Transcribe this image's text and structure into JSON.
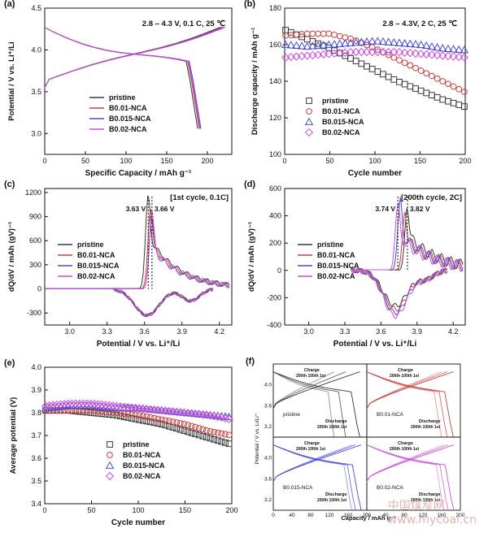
{
  "watermark": {
    "cn": "中国煤炭网",
    "url": "www.mycoal.cn"
  },
  "legend_names": [
    "pristine",
    "B0.01-NCA",
    "B0.015-NCA",
    "B0.02-NCA"
  ],
  "colors": {
    "pristine": "#3a3a3a",
    "B0.01-NCA": "#c94040",
    "B0.015-NCA": "#4a4ad0",
    "B0.02-NCA": "#c84fd8"
  },
  "chart_data": [
    {
      "panel": "(a)",
      "type": "line",
      "annotation": "2.8 – 4.3 V, 0.1 C, 25 ℃",
      "xlabel": "Specific Capacity / mAh g⁻¹",
      "ylabel": "Potential / V vs. Li⁺/Li",
      "xlim": [
        0,
        230
      ],
      "ylim": [
        2.75,
        4.5
      ],
      "xticks": [
        "0",
        "50",
        "100",
        "150",
        "200"
      ],
      "yticks": [
        "3.0",
        "3.5",
        "4.0",
        "4.5"
      ],
      "legend": "lower-center",
      "series": [
        {
          "name": "pristine",
          "charge_capacity": 216,
          "discharge_capacity": 188
        },
        {
          "name": "B0.01-NCA",
          "charge_capacity": 218,
          "discharge_capacity": 190
        },
        {
          "name": "B0.015-NCA",
          "charge_capacity": 220,
          "discharge_capacity": 192
        },
        {
          "name": "B0.02-NCA",
          "charge_capacity": 222,
          "discharge_capacity": 191
        }
      ]
    },
    {
      "panel": "(b)",
      "type": "scatter",
      "annotation": "2.8 – 4.3V, 2 C, 25 ℃",
      "xlabel": "Cycle number",
      "ylabel": "Discharge capacity / mAh g⁻¹",
      "xlim": [
        0,
        200
      ],
      "ylim": [
        100,
        180
      ],
      "xticks": [
        "0",
        "50",
        "100",
        "150",
        "200"
      ],
      "yticks": [
        "100",
        "120",
        "140",
        "160",
        "180"
      ],
      "legend": "lower-left",
      "series": [
        {
          "name": "pristine",
          "x": [
            1,
            25,
            50,
            75,
            100,
            125,
            150,
            175,
            200
          ],
          "values": [
            168,
            163,
            158,
            152,
            146,
            140,
            135,
            130,
            126
          ]
        },
        {
          "name": "B0.01-NCA",
          "x": [
            1,
            25,
            50,
            75,
            100,
            125,
            150,
            175,
            200
          ],
          "values": [
            165,
            166,
            166,
            163,
            158,
            152,
            146,
            140,
            134
          ]
        },
        {
          "name": "B0.015-NCA",
          "x": [
            1,
            25,
            50,
            75,
            100,
            125,
            150,
            175,
            200
          ],
          "values": [
            160,
            159,
            160,
            161,
            162,
            161,
            160,
            158,
            157
          ]
        },
        {
          "name": "B0.02-NCA",
          "x": [
            1,
            25,
            50,
            75,
            100,
            125,
            150,
            175,
            200
          ],
          "values": [
            153,
            154,
            155,
            156,
            156,
            156,
            155,
            154,
            153
          ]
        }
      ]
    },
    {
      "panel": "(c)",
      "type": "line",
      "annotation": "[1st cycle, 0.1C]",
      "peak_labels": [
        "3.63 V",
        "3.66 V"
      ],
      "xlabel": "Potential / V vs. Li⁺/Li",
      "ylabel": "dQ/dV / mAh (gV)⁻¹",
      "xlim": [
        2.8,
        4.3
      ],
      "ylim": [
        -450,
        1250
      ],
      "xticks": [
        "3.0",
        "3.3",
        "3.6",
        "3.9",
        "4.2"
      ],
      "yticks": [
        "-300",
        "0",
        "300",
        "600",
        "900",
        "1200"
      ],
      "legend": "center-left",
      "series": [
        {
          "name": "pristine",
          "peak_potential": 3.63,
          "peak_value": 1180
        },
        {
          "name": "B0.01-NCA",
          "peak_potential": 3.65,
          "peak_value": 1020
        },
        {
          "name": "B0.015-NCA",
          "peak_potential": 3.66,
          "peak_value": 900
        },
        {
          "name": "B0.02-NCA",
          "peak_potential": 3.66,
          "peak_value": 960
        }
      ]
    },
    {
      "panel": "(d)",
      "type": "line",
      "annotation": "[200th cycle, 2C]",
      "peak_labels": [
        "3.74 V",
        "3.82 V"
      ],
      "xlabel": "Potential / V vs. Li⁺/Li",
      "ylabel": "dQ/dV / mAh (gV)⁻¹",
      "xlim": [
        2.8,
        4.3
      ],
      "ylim": [
        -400,
        600
      ],
      "xticks": [
        "3.0",
        "3.3",
        "3.6",
        "3.9",
        "4.2"
      ],
      "yticks": [
        "-400",
        "-200",
        "0",
        "200",
        "400",
        "600"
      ],
      "legend": "center-left",
      "series": [
        {
          "name": "pristine",
          "peak_potential": 3.82,
          "peak_value": 470
        },
        {
          "name": "B0.01-NCA",
          "peak_potential": 3.8,
          "peak_value": 430
        },
        {
          "name": "B0.015-NCA",
          "peak_potential": 3.76,
          "peak_value": 500
        },
        {
          "name": "B0.02-NCA",
          "peak_potential": 3.74,
          "peak_value": 480
        }
      ]
    },
    {
      "panel": "(e)",
      "type": "scatter",
      "xlabel": "Cycle number",
      "ylabel": "Average potential (V)",
      "xlim": [
        0,
        200
      ],
      "ylim": [
        3.4,
        4.0
      ],
      "xticks": [
        "0",
        "50",
        "100",
        "150",
        "200"
      ],
      "yticks": [
        "3.4",
        "3.5",
        "3.6",
        "3.7",
        "3.8",
        "3.9",
        "4.0"
      ],
      "legend": "lower-center",
      "series": [
        {
          "name": "pristine",
          "x": [
            1,
            25,
            50,
            75,
            100,
            125,
            150,
            175,
            200
          ],
          "values": [
            3.81,
            3.81,
            3.8,
            3.79,
            3.77,
            3.75,
            3.72,
            3.69,
            3.66
          ]
        },
        {
          "name": "B0.01-NCA",
          "x": [
            1,
            25,
            50,
            75,
            100,
            125,
            150,
            175,
            200
          ],
          "values": [
            3.81,
            3.81,
            3.81,
            3.8,
            3.79,
            3.77,
            3.75,
            3.72,
            3.7
          ]
        },
        {
          "name": "B0.015-NCA",
          "x": [
            1,
            25,
            50,
            75,
            100,
            125,
            150,
            175,
            200
          ],
          "values": [
            3.82,
            3.83,
            3.83,
            3.82,
            3.82,
            3.81,
            3.8,
            3.79,
            3.78
          ]
        },
        {
          "name": "B0.02-NCA",
          "x": [
            1,
            25,
            50,
            75,
            100,
            125,
            150,
            175,
            200
          ],
          "values": [
            3.83,
            3.84,
            3.84,
            3.83,
            3.82,
            3.81,
            3.8,
            3.79,
            3.77
          ]
        }
      ]
    },
    {
      "panel": "(f)",
      "type": "line",
      "xlabel": "Capacity / mAh g⁻¹",
      "ylabel": "Potential / V vs. Li/Li⁺",
      "xlim": [
        0,
        200
      ],
      "ylim": [
        3.0,
        4.4
      ],
      "xticks": [
        "0",
        "40",
        "80",
        "120",
        "160",
        "200"
      ],
      "yticks": [
        "3.2",
        "3.6",
        "4.0",
        "4.4"
      ],
      "labels": {
        "charge": "Charge",
        "discharge": "Discharge",
        "cycles": "200th 100th 1st"
      },
      "subplots": [
        {
          "name": "pristine",
          "capacities": [
            130,
            155,
            185
          ]
        },
        {
          "name": "B0.01-NCA",
          "capacities": [
            160,
            172,
            185
          ]
        },
        {
          "name": "B0.015-NCA",
          "capacities": [
            168,
            176,
            188
          ]
        },
        {
          "name": "B0.02-NCA",
          "capacities": [
            165,
            174,
            186
          ]
        }
      ]
    }
  ]
}
